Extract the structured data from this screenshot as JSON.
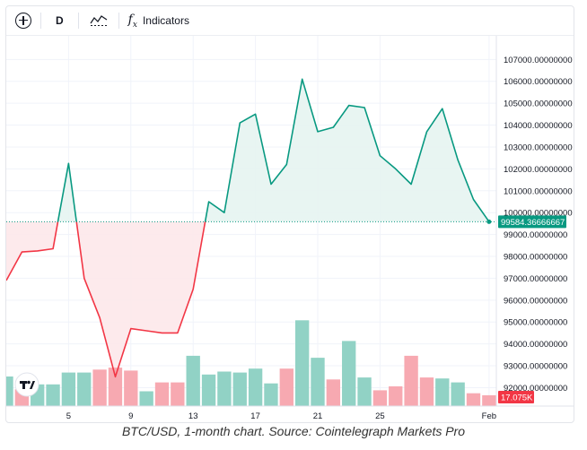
{
  "toolbar": {
    "add_icon": "circle-plus-icon",
    "interval": "D",
    "chart_style_icon": "chart-style-icon",
    "indicators_icon": "fx-icon",
    "indicators_label": "Indicators"
  },
  "badges": {
    "last_price": "99584.36666667",
    "last_volume": "17.075K"
  },
  "caption": "BTC/USD, 1-month chart. Source: Cointelegraph Markets Pro",
  "colors": {
    "up_line": "#089981",
    "down_line": "#f23645",
    "up_fill": "#e6f4f1",
    "down_fill": "#fde8ea",
    "vol_up": "#91d2c5",
    "vol_down": "#f7a9b1",
    "price_badge": "#089981",
    "volume_badge": "#f23645"
  },
  "chart_data": {
    "type": "line",
    "symbol": "BTC/USD",
    "x_ticks": [
      "5",
      "9",
      "13",
      "17",
      "21",
      "25",
      "Feb"
    ],
    "y_ticks": [
      "92000.00000000",
      "93000.00000000",
      "94000.00000000",
      "95000.00000000",
      "96000.00000000",
      "97000.00000000",
      "98000.00000000",
      "99000.00000000",
      "100000.00000000",
      "101000.00000000",
      "102000.00000000",
      "103000.00000000",
      "104000.00000000",
      "105000.00000000",
      "106000.00000000",
      "107000.00000000"
    ],
    "ylim": [
      91200,
      107300
    ],
    "baseline": 99584.36666667,
    "series": [
      {
        "x": [
          "2025-01-01",
          "2025-01-02",
          "2025-01-03",
          "2025-01-04",
          "2025-01-05",
          "2025-01-06",
          "2025-01-07",
          "2025-01-08",
          "2025-01-09",
          "2025-01-10",
          "2025-01-11",
          "2025-01-12",
          "2025-01-13",
          "2025-01-14",
          "2025-01-15",
          "2025-01-16",
          "2025-01-17",
          "2025-01-18",
          "2025-01-19",
          "2025-01-20",
          "2025-01-21",
          "2025-01-22",
          "2025-01-23",
          "2025-01-24",
          "2025-01-25",
          "2025-01-26",
          "2025-01-27",
          "2025-01-28",
          "2025-01-29",
          "2025-01-30",
          "2025-01-31",
          "2025-02-01"
        ],
        "values": [
          96900,
          98200,
          98250,
          98350,
          102250,
          97000,
          95200,
          92500,
          94700,
          94600,
          94500,
          94500,
          96500,
          100500,
          100000,
          104100,
          104500,
          101300,
          102200,
          106100,
          103700,
          103900,
          104900,
          104800,
          102600,
          102000,
          101300,
          103700,
          104750,
          102400,
          100600,
          99584.37
        ]
      }
    ],
    "volume": {
      "x": [
        "2025-01-01",
        "2025-01-02",
        "2025-01-03",
        "2025-01-04",
        "2025-01-05",
        "2025-01-06",
        "2025-01-07",
        "2025-01-08",
        "2025-01-09",
        "2025-01-10",
        "2025-01-11",
        "2025-01-12",
        "2025-01-13",
        "2025-01-14",
        "2025-01-15",
        "2025-01-16",
        "2025-01-17",
        "2025-01-18",
        "2025-01-19",
        "2025-01-20",
        "2025-01-21",
        "2025-01-22",
        "2025-01-23",
        "2025-01-24",
        "2025-01-25",
        "2025-01-26",
        "2025-01-27",
        "2025-01-28",
        "2025-01-29",
        "2025-01-30",
        "2025-01-31",
        "2025-02-01"
      ],
      "direction": [
        "up",
        "down",
        "up",
        "up",
        "up",
        "up",
        "down",
        "down",
        "down",
        "up",
        "down",
        "down",
        "up",
        "up",
        "up",
        "up",
        "up",
        "up",
        "down",
        "up",
        "up",
        "down",
        "up",
        "up",
        "down",
        "down",
        "down",
        "down",
        "up",
        "up",
        "down",
        "down"
      ],
      "relative_heights": [
        0.3,
        0.17,
        0.22,
        0.22,
        0.34,
        0.34,
        0.37,
        0.39,
        0.36,
        0.15,
        0.24,
        0.24,
        0.51,
        0.32,
        0.35,
        0.34,
        0.38,
        0.23,
        0.38,
        0.87,
        0.49,
        0.27,
        0.66,
        0.29,
        0.16,
        0.2,
        0.51,
        0.29,
        0.28,
        0.24,
        0.13,
        0.11
      ]
    }
  }
}
